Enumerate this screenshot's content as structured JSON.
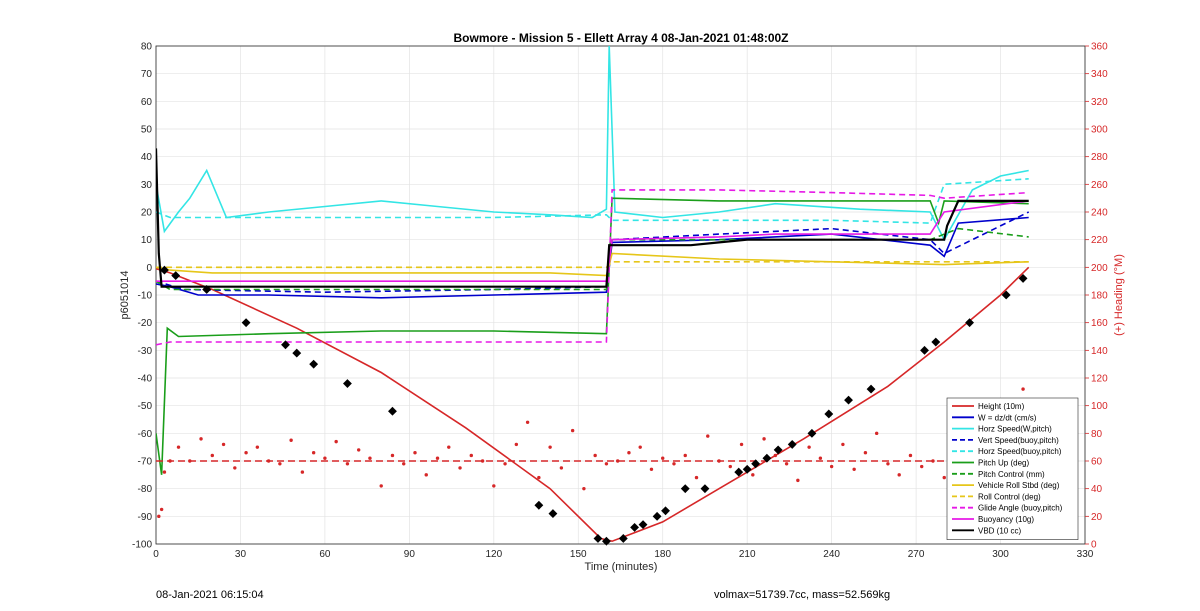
{
  "footer": {
    "timestamp": "08-Jan-2021 06:15:04",
    "volmax": "volmax=51739.7cc, mass=52.569kg"
  },
  "chart_data": {
    "type": "line",
    "title": "Bowmore - Mission 5 - Ellett Array 4 08-Jan-2021 01:48:00Z",
    "xlabel": "Time (minutes)",
    "ylabel": "p6051014",
    "y2label": "(+) Heading (°M)",
    "xlim": [
      0,
      330
    ],
    "ylim": [
      -100,
      80
    ],
    "y2lim": [
      0,
      360
    ],
    "xticks": [
      0,
      30,
      60,
      90,
      120,
      150,
      180,
      210,
      240,
      270,
      300,
      330
    ],
    "yticks": [
      -100,
      -90,
      -80,
      -70,
      -60,
      -50,
      -40,
      -30,
      -20,
      -10,
      0,
      10,
      20,
      30,
      40,
      50,
      60,
      70,
      80
    ],
    "y2ticks": [
      0,
      20,
      40,
      60,
      80,
      100,
      120,
      140,
      160,
      180,
      200,
      220,
      240,
      260,
      280,
      300,
      320,
      340,
      360
    ],
    "grid": true,
    "legend_position": "bottom-right",
    "colors": {
      "red": "#d62728",
      "blue": "#0000cc",
      "cyan": "#33e5e5",
      "green": "#1a9e1a",
      "yellow": "#e6c619",
      "magenta": "#e619e6",
      "black": "#000000"
    },
    "series": [
      {
        "name": "Height (10m)",
        "color": "#d62728",
        "style": "solid",
        "x": [
          0,
          5,
          20,
          50,
          80,
          110,
          140,
          158,
          162,
          180,
          200,
          230,
          260,
          280,
          300,
          310
        ],
        "y": [
          -0.5,
          -2,
          -8,
          -22,
          -38,
          -58,
          -80,
          -98,
          -99,
          -92,
          -80,
          -62,
          -43,
          -27,
          -10,
          0
        ]
      },
      {
        "name": "W = dz/dt (cm/s)",
        "color": "#0000cc",
        "style": "solid",
        "x": [
          0,
          5,
          15,
          40,
          80,
          120,
          160,
          162,
          200,
          240,
          275,
          280,
          285,
          310
        ],
        "y": [
          -6,
          -7,
          -10,
          -10,
          -11,
          -10,
          -9,
          9,
          10,
          12,
          8,
          4,
          16,
          18
        ]
      },
      {
        "name": "Horz Speed(W,pitch)",
        "color": "#33e5e5",
        "style": "solid",
        "x": [
          0,
          3,
          8,
          12,
          18,
          25,
          40,
          60,
          80,
          100,
          120,
          140,
          155,
          160,
          161,
          163,
          180,
          200,
          220,
          250,
          275,
          280,
          290,
          300,
          310
        ],
        "y": [
          30,
          13,
          20,
          25,
          35,
          18,
          20,
          22,
          24,
          22,
          20,
          19,
          18,
          21,
          80,
          20,
          18,
          20,
          23,
          21,
          20,
          10,
          28,
          33,
          35
        ]
      },
      {
        "name": "Vert Speed(buoy,pitch)",
        "color": "#0000cc",
        "style": "dashed",
        "x": [
          0,
          10,
          60,
          120,
          160,
          162,
          200,
          240,
          275,
          280,
          310
        ],
        "y": [
          -5,
          -8,
          -9,
          -8,
          -7,
          10,
          12,
          14,
          10,
          5,
          20
        ]
      },
      {
        "name": "Horz Speed(buoy,pitch)",
        "color": "#33e5e5",
        "style": "dashed",
        "x": [
          0,
          5,
          40,
          80,
          120,
          160,
          162,
          200,
          240,
          275,
          280,
          310
        ],
        "y": [
          20,
          18,
          18,
          18,
          18,
          19,
          17,
          17,
          17,
          16,
          30,
          32
        ]
      },
      {
        "name": "Pitch Up (deg)",
        "color": "#1a9e1a",
        "style": "solid",
        "x": [
          0,
          2,
          4,
          8,
          40,
          80,
          120,
          160,
          162,
          200,
          240,
          275,
          278,
          280,
          310
        ],
        "y": [
          -60,
          -75,
          -22,
          -25,
          -24,
          -23,
          -23,
          -24,
          25,
          24,
          24,
          24,
          16,
          24,
          23
        ]
      },
      {
        "name": "Pitch Control (mm)",
        "color": "#1a9e1a",
        "style": "dashed",
        "x": [
          0,
          5,
          40,
          80,
          120,
          160,
          162,
          200,
          240,
          275,
          285,
          310
        ],
        "y": [
          -5,
          -8,
          -8,
          -8,
          -8,
          -8,
          10,
          10,
          10,
          10,
          14,
          11
        ]
      },
      {
        "name": "Vehicle Roll Stbd (deg)",
        "color": "#e6c619",
        "style": "solid",
        "x": [
          0,
          5,
          20,
          60,
          100,
          140,
          160,
          162,
          200,
          240,
          280,
          310
        ],
        "y": [
          0,
          -1,
          -2,
          -2,
          -2,
          -2,
          -3,
          5,
          3,
          2,
          1,
          2
        ]
      },
      {
        "name": "Roll Control (deg)",
        "color": "#e6c619",
        "style": "dashed",
        "x": [
          0,
          5,
          60,
          120,
          160,
          162,
          200,
          240,
          280,
          310
        ],
        "y": [
          0,
          0,
          0,
          0,
          0,
          2,
          2,
          2,
          2,
          2
        ]
      },
      {
        "name": "Glide Angle (buoy,pitch)",
        "color": "#e619e6",
        "style": "dashed",
        "x": [
          0,
          5,
          40,
          80,
          120,
          160,
          162,
          200,
          240,
          275,
          280,
          310
        ],
        "y": [
          -28,
          -27,
          -27,
          -27,
          -27,
          -27,
          28,
          28,
          27,
          26,
          25,
          27
        ]
      },
      {
        "name": "Buoyancy (10g)",
        "color": "#e619e6",
        "style": "solid",
        "x": [
          0,
          5,
          40,
          80,
          120,
          160,
          162,
          200,
          220,
          240,
          275,
          280,
          310
        ],
        "y": [
          -5,
          -5,
          -5,
          -5,
          -5,
          -5,
          10,
          11,
          12,
          12,
          12,
          20,
          24
        ]
      },
      {
        "name": "VBD (10 cc)",
        "color": "#000000",
        "style": "solid",
        "x": [
          0,
          1,
          2,
          160,
          161,
          180,
          190,
          200,
          210,
          280,
          281,
          285,
          310
        ],
        "y": [
          43,
          5,
          -7,
          -7,
          8,
          8,
          8,
          9,
          10,
          10,
          15,
          24,
          24
        ]
      }
    ],
    "heading": {
      "name": "Heading (+, °M, right axis)",
      "color": "#d62728",
      "reference": 60,
      "x": [
        1,
        2,
        3,
        5,
        8,
        12,
        16,
        20,
        24,
        28,
        32,
        36,
        40,
        44,
        48,
        52,
        56,
        60,
        64,
        68,
        72,
        76,
        80,
        84,
        88,
        92,
        96,
        100,
        104,
        108,
        112,
        116,
        120,
        124,
        128,
        132,
        136,
        140,
        144,
        148,
        152,
        156,
        160,
        164,
        168,
        172,
        176,
        180,
        184,
        188,
        192,
        196,
        200,
        204,
        208,
        212,
        216,
        220,
        224,
        228,
        232,
        236,
        240,
        244,
        248,
        252,
        256,
        260,
        264,
        268,
        272,
        276,
        280,
        284,
        288,
        292,
        296,
        300,
        304,
        308
      ],
      "y": [
        20,
        25,
        52,
        60,
        70,
        60,
        76,
        64,
        72,
        55,
        66,
        70,
        60,
        58,
        75,
        52,
        66,
        62,
        74,
        58,
        68,
        62,
        42,
        64,
        58,
        66,
        50,
        62,
        70,
        55,
        64,
        60,
        42,
        58,
        72,
        88,
        48,
        70,
        55,
        82,
        40,
        64,
        58,
        60,
        66,
        70,
        54,
        62,
        58,
        64,
        48,
        78,
        60,
        56,
        72,
        50,
        76,
        64,
        58,
        46,
        70,
        62,
        56,
        72,
        54,
        66,
        80,
        58,
        50,
        64,
        56,
        60,
        48,
        70,
        52,
        58,
        62,
        60,
        66,
        112
      ]
    },
    "markers": {
      "name": "Height markers",
      "x": [
        3,
        7,
        18,
        32,
        46,
        50,
        56,
        68,
        84,
        136,
        141,
        157,
        160,
        166,
        170,
        173,
        178,
        181,
        188,
        195,
        207,
        210,
        213,
        217,
        221,
        226,
        233,
        239,
        246,
        254,
        273,
        277,
        289,
        302,
        308
      ],
      "y": [
        -1,
        -3,
        -8,
        -20,
        -28,
        -31,
        -35,
        -42,
        -52,
        -86,
        -89,
        -98,
        -99,
        -98,
        -94,
        -93,
        -90,
        -88,
        -80,
        -80,
        -74,
        -73,
        -71,
        -69,
        -66,
        -64,
        -60,
        -53,
        -48,
        -44,
        -30,
        -27,
        -20,
        -10,
        -4
      ]
    }
  }
}
